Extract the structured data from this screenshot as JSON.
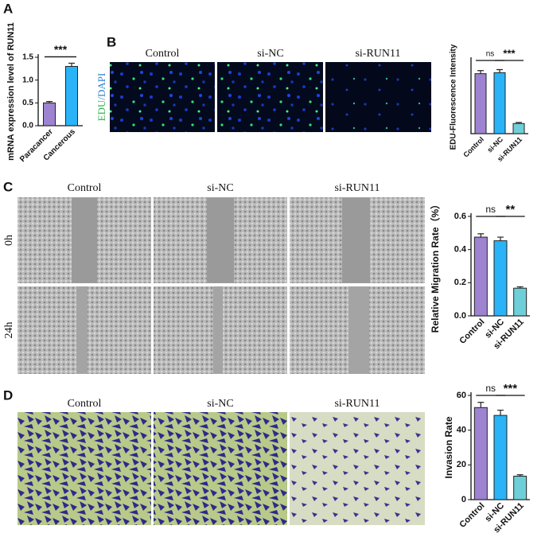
{
  "figure": {
    "panel_labels": [
      "A",
      "B",
      "C",
      "D"
    ],
    "b_columns": [
      "Control",
      "si-NC",
      "si-RUN11"
    ],
    "b_stain": {
      "edu": "EDU",
      "dapi": "/DAPI"
    },
    "c_columns": [
      "Control",
      "si-NC",
      "si-RUN11"
    ],
    "c_rows": [
      "0h",
      "24h"
    ],
    "d_columns": [
      "Control",
      "si-NC",
      "si-RUN11"
    ]
  },
  "chart_data": [
    {
      "type": "bar",
      "ylabel": "mRNA expression level of RUN11",
      "categories": [
        "Paracancer",
        "Cancerous"
      ],
      "values": [
        0.5,
        1.3
      ],
      "errors": [
        0.03,
        0.07
      ],
      "colors": [
        "#9d83d0",
        "#2ab4f7"
      ],
      "ylim": [
        0,
        1.5
      ],
      "yticks": [
        {
          "value": 0,
          "label": "0.0"
        },
        0.5,
        {
          "value": 1,
          "label": "1.0"
        },
        1.5
      ],
      "annotations": [
        "***"
      ]
    },
    {
      "type": "bar",
      "ylabel": "EDU-Fluorescence Intensity",
      "categories": [
        "Control",
        "si-NC",
        "si-RUN11"
      ],
      "values": [
        2.95,
        3.0,
        0.5
      ],
      "errors": [
        0.15,
        0.15,
        0.05
      ],
      "colors": [
        "#9d83d0",
        "#2ab4f7",
        "#6fcfd8"
      ],
      "ylim": [
        0,
        3.6
      ],
      "annotations": [
        "ns",
        "***"
      ]
    },
    {
      "type": "bar",
      "ylabel": "Relative Migration Rate（%）",
      "categories": [
        "Control",
        "si-NC",
        "si-RUN11"
      ],
      "values": [
        0.475,
        0.453,
        0.167
      ],
      "errors": [
        0.02,
        0.022,
        0.008
      ],
      "colors": [
        "#9d83d0",
        "#2ab4f7",
        "#6fcfd8"
      ],
      "ylim": [
        0,
        0.6
      ],
      "yticks": [
        {
          "value": 0,
          "label": "0.0"
        },
        0.2,
        0.4,
        0.6
      ],
      "annotations": [
        "ns",
        "**"
      ]
    },
    {
      "type": "bar",
      "ylabel": "Invasion Rate",
      "categories": [
        "Control",
        "si-NC",
        "si-RUN11"
      ],
      "values": [
        53,
        48.5,
        13.5
      ],
      "errors": [
        3,
        3,
        0.8
      ],
      "colors": [
        "#9d83d0",
        "#2ab4f7",
        "#6fcfd8"
      ],
      "ylim": [
        0,
        60
      ],
      "yticks": [
        0,
        20,
        40,
        60
      ],
      "annotations": [
        "ns",
        "***"
      ]
    }
  ]
}
